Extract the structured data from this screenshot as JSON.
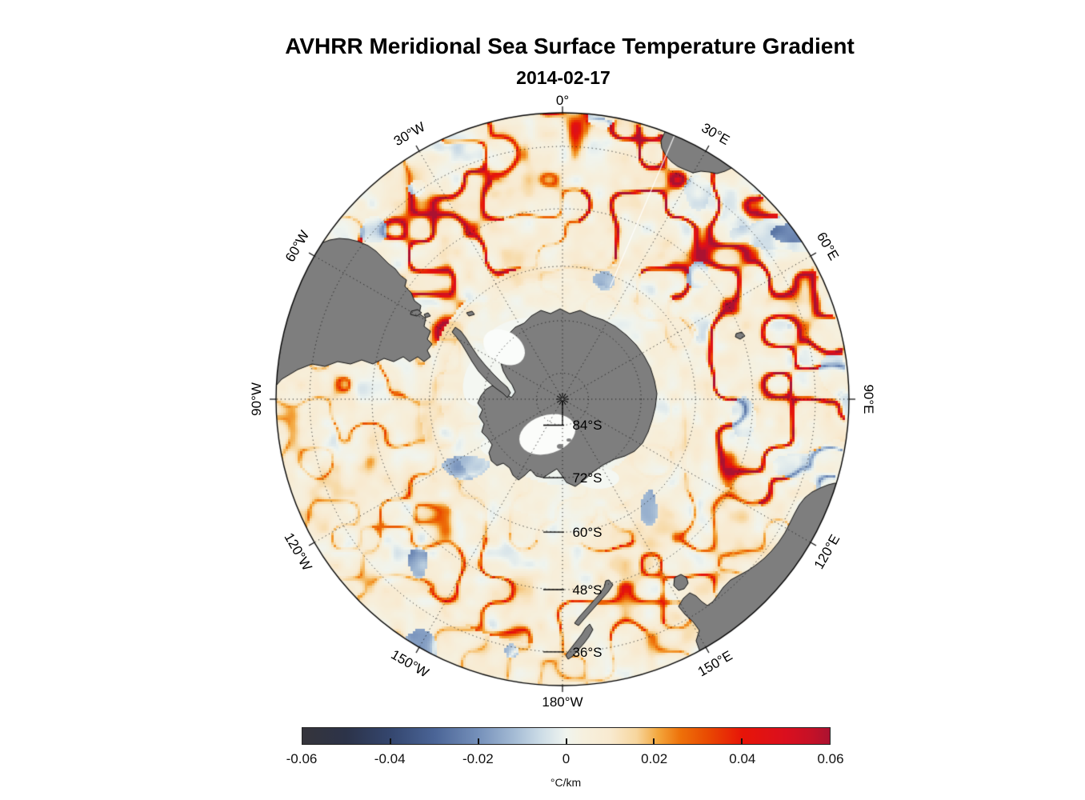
{
  "figure": {
    "title": "AVHRR Meridional Sea Surface Temperature Gradient",
    "subtitle": "2014-02-17"
  },
  "map": {
    "projection": "south-polar-stereographic",
    "outer_latitude_deg": -30,
    "land_color": "#7e7e7e",
    "coast_color": "#141414",
    "ice_color": "#f4f7f2",
    "lon_labels": [
      {
        "text": "0°",
        "az": 0
      },
      {
        "text": "30°E",
        "az": 30
      },
      {
        "text": "60°E",
        "az": 60
      },
      {
        "text": "90°E",
        "az": 90
      },
      {
        "text": "120°E",
        "az": 120
      },
      {
        "text": "150°E",
        "az": 150
      },
      {
        "text": "180°W",
        "az": 180
      },
      {
        "text": "150°W",
        "az": -150
      },
      {
        "text": "120°W",
        "az": -120
      },
      {
        "text": "90°W",
        "az": -90
      },
      {
        "text": "60°W",
        "az": -60
      },
      {
        "text": "30°W",
        "az": -30
      }
    ],
    "lat_labels": [
      {
        "text": "84°S",
        "lat": -84
      },
      {
        "text": "72°S",
        "lat": -72
      },
      {
        "text": "60°S",
        "lat": -60
      },
      {
        "text": "48°S",
        "lat": -48
      },
      {
        "text": "36°S",
        "lat": -36
      }
    ],
    "graticule": {
      "lon_step_deg": 30,
      "lat_circle_step_deg": 12
    }
  },
  "colorbar": {
    "min": -0.06,
    "max": 0.06,
    "unit": "°C/km",
    "tick_labels": [
      {
        "value": -0.06,
        "label": "-0.06"
      },
      {
        "value": -0.04,
        "label": "-0.04"
      },
      {
        "value": -0.02,
        "label": "-0.02"
      },
      {
        "value": 0,
        "label": "0"
      },
      {
        "value": 0.02,
        "label": "0.02"
      },
      {
        "value": 0.04,
        "label": "0.04"
      },
      {
        "value": 0.06,
        "label": "0.06"
      }
    ],
    "inner_ticks": [
      -0.04,
      -0.02,
      0,
      0.02,
      0.04
    ],
    "stops": [
      {
        "v": -0.06,
        "c": "#35343b"
      },
      {
        "v": -0.05,
        "c": "#2c3349"
      },
      {
        "v": -0.04,
        "c": "#34466e"
      },
      {
        "v": -0.03,
        "c": "#4a6496"
      },
      {
        "v": -0.02,
        "c": "#7590ba"
      },
      {
        "v": -0.012,
        "c": "#a3bad4"
      },
      {
        "v": -0.006,
        "c": "#cbdbe6"
      },
      {
        "v": -0.001,
        "c": "#e9f0ee"
      },
      {
        "v": 0.0,
        "c": "#f0f4ee"
      },
      {
        "v": 0.004,
        "c": "#f6f0de"
      },
      {
        "v": 0.01,
        "c": "#f8ead0"
      },
      {
        "v": 0.016,
        "c": "#f7d69e"
      },
      {
        "v": 0.021,
        "c": "#f3a63c"
      },
      {
        "v": 0.026,
        "c": "#ee7109"
      },
      {
        "v": 0.032,
        "c": "#e94b02"
      },
      {
        "v": 0.04,
        "c": "#e71508"
      },
      {
        "v": 0.05,
        "c": "#da0f1e"
      },
      {
        "v": 0.056,
        "c": "#c41127"
      },
      {
        "v": 0.06,
        "c": "#ab1231"
      }
    ]
  },
  "chart_data": {
    "type": "heatmap",
    "title": "AVHRR Meridional Sea Surface Temperature Gradient",
    "date": "2014-02-17",
    "value_range": [
      -0.06,
      0.06
    ],
    "unit": "°C/km",
    "colorbar_ticks": [
      -0.06,
      -0.04,
      -0.02,
      0,
      0.02,
      0.04,
      0.06
    ],
    "colormap": "diverging dark-blue → white → orange → dark-red",
    "projection": "south polar stereographic",
    "lat_extent_deg": [
      -90,
      -30
    ],
    "lon_gridlines_deg": [
      0,
      30,
      60,
      90,
      120,
      150,
      180,
      -150,
      -120,
      -90,
      -60,
      -30
    ],
    "lat_gridlines_deg": [
      -84,
      -72,
      -60,
      -48,
      -36
    ],
    "legend_position": "bottom",
    "visible_landmasses": [
      "Antarctica",
      "South America (Patagonia)",
      "Southern Africa",
      "Australia",
      "Tasmania",
      "New Zealand"
    ]
  }
}
